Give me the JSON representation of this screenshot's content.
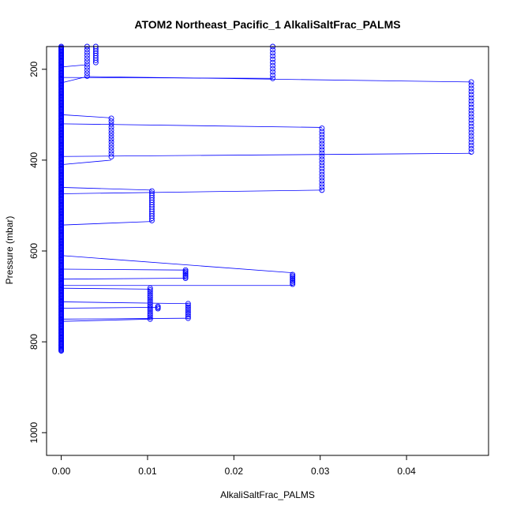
{
  "chart_data": {
    "type": "scatter",
    "title": "ATOM2 Northeast_Pacific_1 AlkaliSaltFrac_PALMS",
    "xlabel": "AlkaliSaltFrac_PALMS",
    "ylabel": "Pressure (mbar)",
    "xlim": [
      -0.0017,
      0.0495
    ],
    "ylim": [
      1050,
      150
    ],
    "y_reversed": true,
    "x_ticks": [
      0.0,
      0.01,
      0.02,
      0.03,
      0.04
    ],
    "x_tick_labels": [
      "0.00",
      "0.01",
      "0.02",
      "0.03",
      "0.04"
    ],
    "y_ticks": [
      200,
      400,
      600,
      800,
      1000
    ],
    "y_tick_labels": [
      "200",
      "400",
      "600",
      "800",
      "1000"
    ],
    "grid": false,
    "legend": "none",
    "marker": "open-circle",
    "colors": {
      "points": "#0000ff",
      "line": "#0000ff",
      "axes": "#000000"
    },
    "series": [
      {
        "clusters": [
          {
            "x": 0.0,
            "p_start": 150,
            "p_end": 820,
            "step": 2
          },
          {
            "x": 0.003,
            "p_start": 150,
            "p_end": 215,
            "step": 6.5
          },
          {
            "x": 0.004,
            "p_start": 150,
            "p_end": 185,
            "step": 5
          },
          {
            "x": 0.0245,
            "p_start": 150,
            "p_end": 220,
            "step": 7
          },
          {
            "x": 0.0475,
            "p_start": 228,
            "p_end": 383,
            "step": 7
          },
          {
            "x": 0.0058,
            "p_start": 308,
            "p_end": 398,
            "step": 6.5
          },
          {
            "x": 0.0302,
            "p_start": 330,
            "p_end": 466,
            "step": 6.8
          },
          {
            "x": 0.0105,
            "p_start": 468,
            "p_end": 535,
            "step": 5
          },
          {
            "x": 0.0144,
            "p_start": 642,
            "p_end": 660,
            "step": 3
          },
          {
            "x": 0.0268,
            "p_start": 652,
            "p_end": 675,
            "step": 3
          },
          {
            "x": 0.0103,
            "p_start": 682,
            "p_end": 750,
            "step": 4
          },
          {
            "x": 0.0112,
            "p_start": 722,
            "p_end": 727,
            "step": 2.5
          },
          {
            "x": 0.0147,
            "p_start": 716,
            "p_end": 750,
            "step": 4
          }
        ],
        "segments": [
          [
            0.0,
            195,
            0.003,
            190
          ],
          [
            0.0,
            230,
            0.003,
            216
          ],
          [
            0.003,
            216,
            0.0475,
            228
          ],
          [
            0.0,
            218,
            0.0245,
            220
          ],
          [
            0.0,
            300,
            0.0058,
            307
          ],
          [
            0.0,
            320,
            0.0302,
            328
          ],
          [
            0.0,
            392,
            0.0475,
            385
          ],
          [
            0.0,
            410,
            0.0058,
            400
          ],
          [
            0.0,
            460,
            0.0105,
            466
          ],
          [
            0.0,
            474,
            0.0302,
            466
          ],
          [
            0.0,
            543,
            0.0105,
            535
          ],
          [
            0.0,
            610,
            0.0268,
            648
          ],
          [
            0.0,
            640,
            0.0144,
            642
          ],
          [
            0.0,
            662,
            0.0144,
            660
          ],
          [
            0.0,
            676,
            0.0268,
            676
          ],
          [
            0.0,
            682,
            0.0103,
            684
          ],
          [
            0.0,
            712,
            0.0147,
            716
          ],
          [
            0.0,
            726,
            0.0112,
            724
          ],
          [
            0.0,
            750,
            0.0147,
            748
          ],
          [
            0.0,
            755,
            0.0103,
            750
          ]
        ]
      }
    ]
  }
}
